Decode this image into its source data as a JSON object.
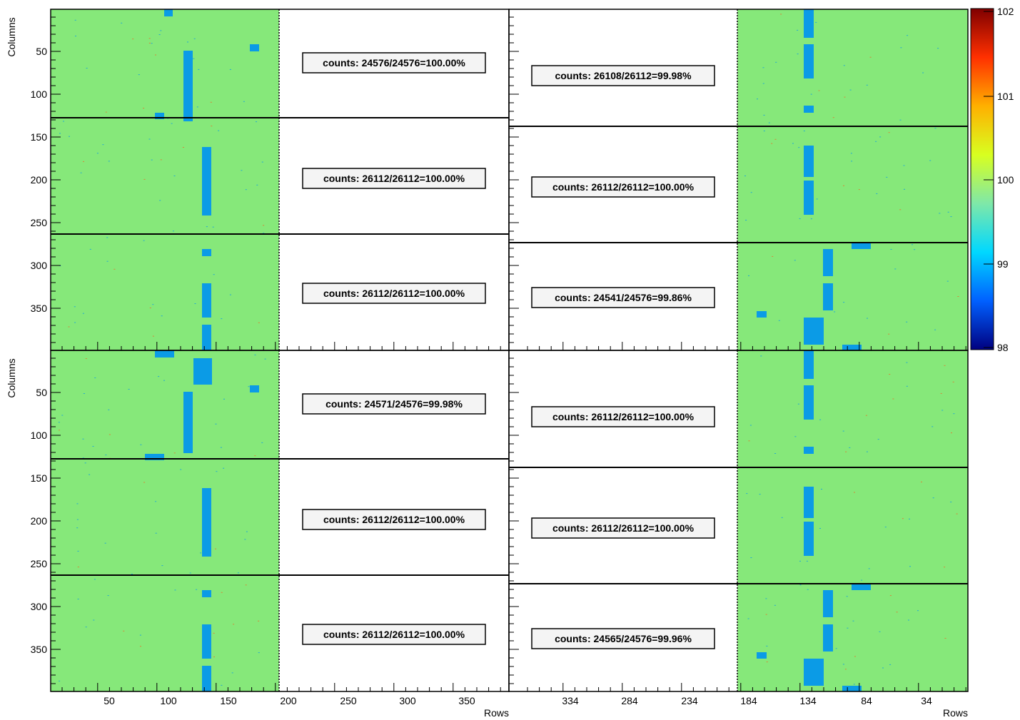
{
  "chart_data": {
    "type": "heatmap",
    "xlabel": "Rows",
    "ylabel": "Columns",
    "colorbar": {
      "range": [
        98,
        102
      ],
      "ticks": [
        "102",
        "101",
        "100",
        "99",
        "98"
      ],
      "stops": [
        "#000080",
        "#0060ff",
        "#00d8ff",
        "#7fe8a8",
        "#d8ff20",
        "#ffb000",
        "#ff3000",
        "#800000"
      ]
    },
    "colors": {
      "efficient": "#86e87a",
      "inefficient": "#0b9be6",
      "hot": "#e6702a",
      "frame": "#000000"
    },
    "y_ticks": [
      "50",
      "100",
      "150",
      "200",
      "250",
      "300",
      "350"
    ],
    "left_x_ticks": [
      "50",
      "100",
      "150",
      "200",
      "250",
      "300",
      "350"
    ],
    "right_x_ticks": [
      "334",
      "284",
      "234",
      "184",
      "134",
      "84",
      "34"
    ],
    "panels": [
      {
        "name": "top",
        "left_labels": [
          "counts: 24576/24576=100.00%",
          "counts: 26112/26112=100.00%",
          "counts: 26112/26112=100.00%"
        ],
        "right_labels": [
          "counts: 26108/26112=99.98%",
          "counts: 26112/26112=100.00%",
          "counts: 24541/24576=99.86%"
        ]
      },
      {
        "name": "bottom",
        "left_labels": [
          "counts: 24571/24576=99.98%",
          "counts: 26112/26112=100.00%",
          "counts: 26112/26112=100.00%"
        ],
        "right_labels": [
          "counts: 26112/26112=100.00%",
          "counts: 26112/26112=100.00%",
          "counts: 24565/24576=99.96%"
        ]
      }
    ]
  }
}
